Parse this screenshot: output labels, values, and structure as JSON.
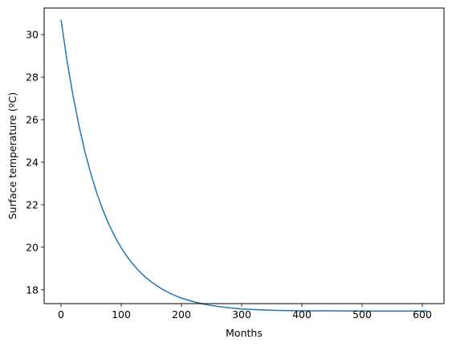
{
  "chart_data": {
    "type": "line",
    "title": "",
    "xlabel": "Months",
    "ylabel": "Surface temperature (ºC)",
    "xlim": [
      -28,
      636
    ],
    "ylim": [
      17.35,
      31.25
    ],
    "xticks": [
      0,
      100,
      200,
      300,
      400,
      500,
      600
    ],
    "yticks": [
      18,
      20,
      22,
      24,
      26,
      28,
      30
    ],
    "grid": false,
    "legend": "none",
    "series": [
      {
        "color": "#1f77b4",
        "x": [
          0,
          10,
          20,
          30,
          40,
          50,
          60,
          70,
          80,
          90,
          100,
          110,
          120,
          130,
          140,
          150,
          160,
          170,
          180,
          190,
          200,
          220,
          240,
          260,
          280,
          300,
          320,
          340,
          360,
          380,
          400,
          450,
          500,
          550,
          608
        ],
        "y": [
          30.7,
          28.77,
          27.12,
          25.69,
          24.46,
          23.41,
          22.5,
          21.72,
          21.05,
          20.47,
          19.97,
          19.55,
          19.18,
          18.87,
          18.6,
          18.37,
          18.17,
          18.0,
          17.85,
          17.72,
          17.61,
          17.44,
          17.31,
          17.22,
          17.15,
          17.1,
          17.07,
          17.05,
          17.03,
          17.02,
          17.01,
          17.01,
          17.0,
          17.0,
          17.0
        ]
      }
    ]
  }
}
